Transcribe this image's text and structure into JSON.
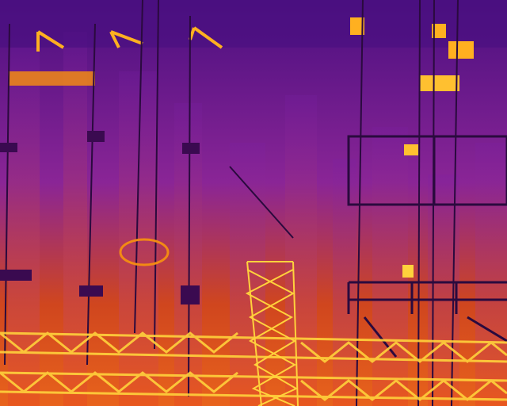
{
  "image": {
    "subject": "thermal-substation-view",
    "palette": {
      "deep": "#3a0a6e",
      "cool": "#7a1fa8",
      "mid": "#b0308a",
      "warm": "#e8561e",
      "hot": "#f28a14",
      "hottest": "#ffd23c",
      "white": "#fff4b0",
      "line": "#2a0a3e"
    }
  }
}
